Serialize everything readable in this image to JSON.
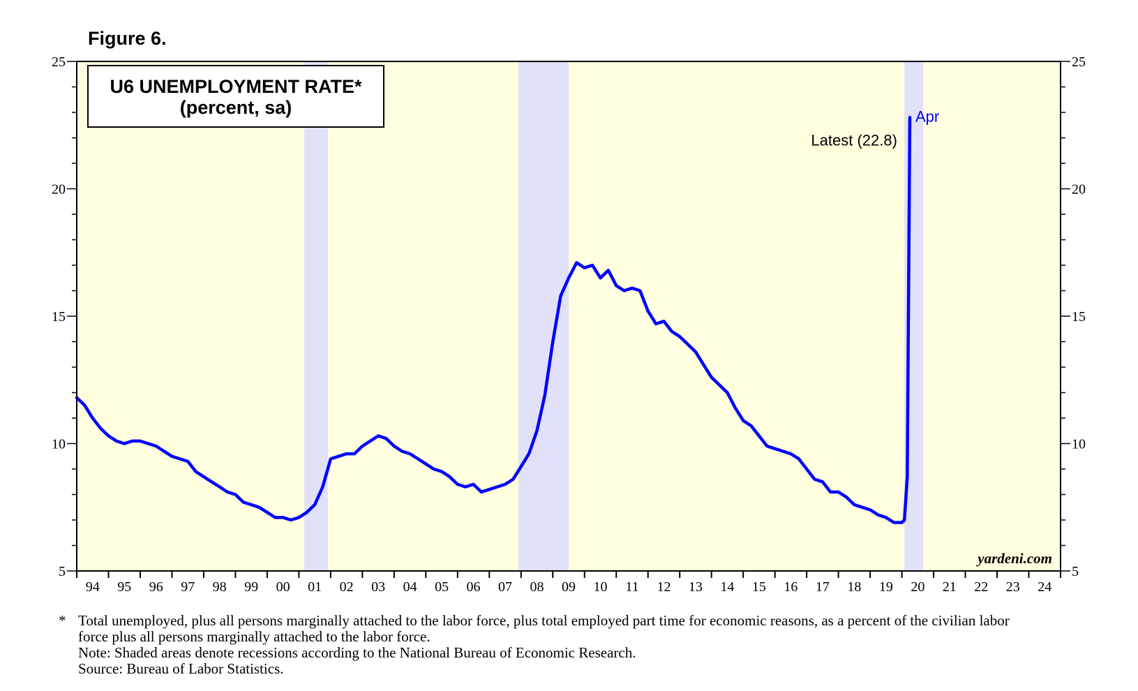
{
  "figure_label": "Figure 6.",
  "colors": {
    "plot_bg": "#FFFFE0",
    "recession": "#E1E1FA",
    "line": "#0000FF",
    "axis": "#000000"
  },
  "chart_data": {
    "type": "line",
    "title": "U6 UNEMPLOYMENT RATE*",
    "subtitle": "(percent, sa)",
    "xlabel": "",
    "ylabel": "",
    "xlim": [
      1994.0,
      2025.0
    ],
    "ylim": [
      5,
      25
    ],
    "y_ticks": [
      5,
      10,
      15,
      20,
      25
    ],
    "x_tick_labels": [
      "94",
      "95",
      "96",
      "97",
      "98",
      "99",
      "00",
      "01",
      "02",
      "03",
      "04",
      "05",
      "06",
      "07",
      "08",
      "09",
      "10",
      "11",
      "12",
      "13",
      "14",
      "15",
      "16",
      "17",
      "18",
      "19",
      "20",
      "21",
      "22",
      "23",
      "24"
    ],
    "recessions": [
      [
        2001.17,
        2001.92
      ],
      [
        2007.92,
        2009.5
      ],
      [
        2020.08,
        2020.67
      ]
    ],
    "annotations": {
      "latest": "Latest (22.8)",
      "month": "Apr"
    },
    "watermark": "yardeni.com",
    "grid": false,
    "series": [
      {
        "name": "U6 Unemployment Rate",
        "points": [
          [
            1994.0,
            11.8
          ],
          [
            1994.25,
            11.5
          ],
          [
            1994.5,
            11.0
          ],
          [
            1994.75,
            10.6
          ],
          [
            1995.0,
            10.3
          ],
          [
            1995.25,
            10.1
          ],
          [
            1995.5,
            10.0
          ],
          [
            1995.75,
            10.1
          ],
          [
            1996.0,
            10.1
          ],
          [
            1996.25,
            10.0
          ],
          [
            1996.5,
            9.9
          ],
          [
            1996.75,
            9.7
          ],
          [
            1997.0,
            9.5
          ],
          [
            1997.25,
            9.4
          ],
          [
            1997.5,
            9.3
          ],
          [
            1997.75,
            8.9
          ],
          [
            1998.0,
            8.7
          ],
          [
            1998.25,
            8.5
          ],
          [
            1998.5,
            8.3
          ],
          [
            1998.75,
            8.1
          ],
          [
            1999.0,
            8.0
          ],
          [
            1999.25,
            7.7
          ],
          [
            1999.5,
            7.6
          ],
          [
            1999.75,
            7.5
          ],
          [
            2000.0,
            7.3
          ],
          [
            2000.25,
            7.1
          ],
          [
            2000.5,
            7.1
          ],
          [
            2000.75,
            7.0
          ],
          [
            2001.0,
            7.1
          ],
          [
            2001.25,
            7.3
          ],
          [
            2001.5,
            7.6
          ],
          [
            2001.75,
            8.3
          ],
          [
            2002.0,
            9.4
          ],
          [
            2002.25,
            9.5
          ],
          [
            2002.5,
            9.6
          ],
          [
            2002.75,
            9.6
          ],
          [
            2003.0,
            9.9
          ],
          [
            2003.25,
            10.1
          ],
          [
            2003.5,
            10.3
          ],
          [
            2003.75,
            10.2
          ],
          [
            2004.0,
            9.9
          ],
          [
            2004.25,
            9.7
          ],
          [
            2004.5,
            9.6
          ],
          [
            2004.75,
            9.4
          ],
          [
            2005.0,
            9.2
          ],
          [
            2005.25,
            9.0
          ],
          [
            2005.5,
            8.9
          ],
          [
            2005.75,
            8.7
          ],
          [
            2006.0,
            8.4
          ],
          [
            2006.25,
            8.3
          ],
          [
            2006.5,
            8.4
          ],
          [
            2006.75,
            8.1
          ],
          [
            2007.0,
            8.2
          ],
          [
            2007.25,
            8.3
          ],
          [
            2007.5,
            8.4
          ],
          [
            2007.75,
            8.6
          ],
          [
            2008.0,
            9.1
          ],
          [
            2008.25,
            9.6
          ],
          [
            2008.5,
            10.5
          ],
          [
            2008.75,
            11.9
          ],
          [
            2009.0,
            14.0
          ],
          [
            2009.25,
            15.8
          ],
          [
            2009.5,
            16.5
          ],
          [
            2009.75,
            17.1
          ],
          [
            2010.0,
            16.9
          ],
          [
            2010.25,
            17.0
          ],
          [
            2010.5,
            16.5
          ],
          [
            2010.75,
            16.8
          ],
          [
            2011.0,
            16.2
          ],
          [
            2011.25,
            16.0
          ],
          [
            2011.5,
            16.1
          ],
          [
            2011.75,
            16.0
          ],
          [
            2012.0,
            15.2
          ],
          [
            2012.25,
            14.7
          ],
          [
            2012.5,
            14.8
          ],
          [
            2012.75,
            14.4
          ],
          [
            2013.0,
            14.2
          ],
          [
            2013.25,
            13.9
          ],
          [
            2013.5,
            13.6
          ],
          [
            2013.75,
            13.1
          ],
          [
            2014.0,
            12.6
          ],
          [
            2014.25,
            12.3
          ],
          [
            2014.5,
            12.0
          ],
          [
            2014.75,
            11.4
          ],
          [
            2015.0,
            10.9
          ],
          [
            2015.25,
            10.7
          ],
          [
            2015.5,
            10.3
          ],
          [
            2015.75,
            9.9
          ],
          [
            2016.0,
            9.8
          ],
          [
            2016.25,
            9.7
          ],
          [
            2016.5,
            9.6
          ],
          [
            2016.75,
            9.4
          ],
          [
            2017.0,
            9.0
          ],
          [
            2017.25,
            8.6
          ],
          [
            2017.5,
            8.5
          ],
          [
            2017.75,
            8.1
          ],
          [
            2018.0,
            8.1
          ],
          [
            2018.25,
            7.9
          ],
          [
            2018.5,
            7.6
          ],
          [
            2018.75,
            7.5
          ],
          [
            2019.0,
            7.4
          ],
          [
            2019.25,
            7.2
          ],
          [
            2019.5,
            7.1
          ],
          [
            2019.75,
            6.9
          ],
          [
            2020.0,
            6.9
          ],
          [
            2020.08,
            7.0
          ],
          [
            2020.17,
            8.7
          ],
          [
            2020.25,
            22.8
          ]
        ]
      }
    ]
  },
  "footnotes": {
    "star": "*",
    "definition": "Total unemployed, plus all persons marginally attached to the labor force, plus total employed part time for economic reasons, as a percent of the civilian labor force plus all persons marginally attached to the labor force.",
    "note": "Note: Shaded areas denote recessions according to the National Bureau of Economic Research.",
    "source": "Source: Bureau of Labor Statistics."
  }
}
